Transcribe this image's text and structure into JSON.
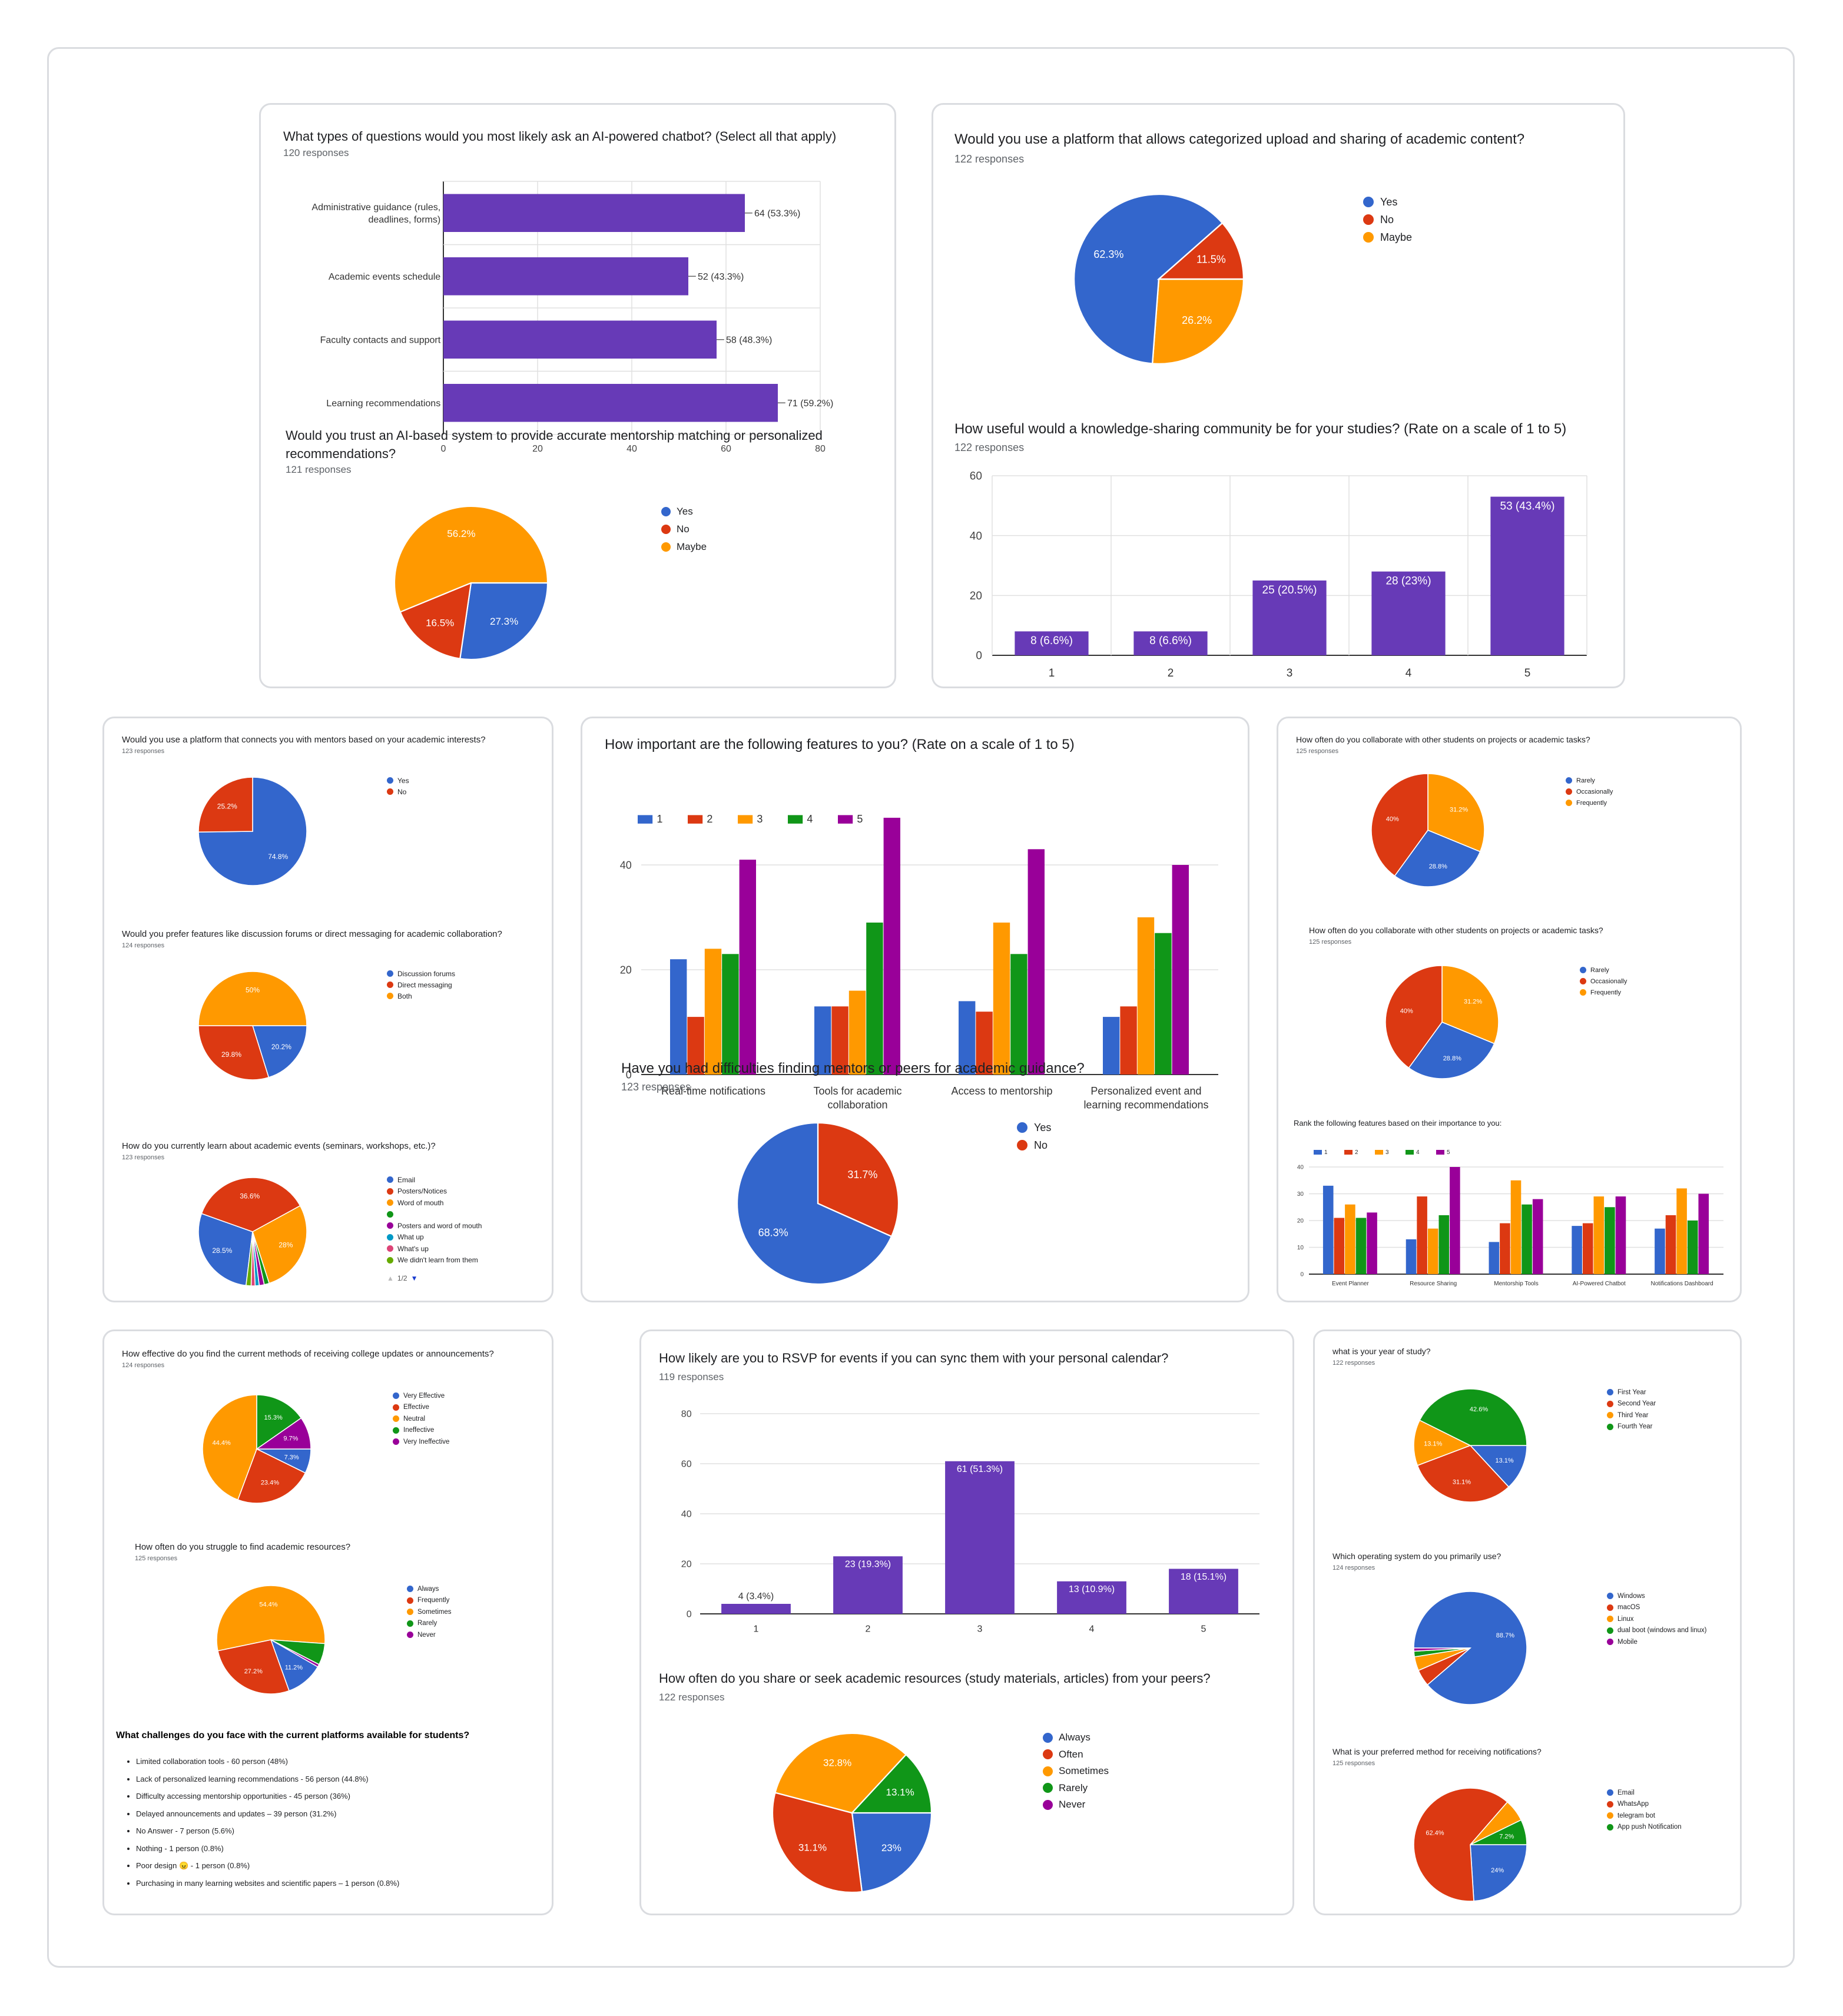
{
  "colors": {
    "blue": "#3366cc",
    "red": "#dc3912",
    "orange": "#ff9900",
    "green": "#109618",
    "purple": "#990099",
    "bar_purple": "#673ab7",
    "cyan": "#0099c6",
    "pink": "#dd4477",
    "olive": "#66aa00",
    "grid": "#e0e0e0",
    "axis": "#333333"
  },
  "pager": {
    "text": "1/2"
  },
  "challenges": {
    "title": "What challenges do you face with the current platforms available for students?",
    "items": [
      "Limited collaboration tools - 60 person (48%)",
      "Lack of personalized learning recommendations - 56 person (44.8%)",
      "Difficulty accessing mentorship opportunities - 45 person (36%)",
      "Delayed announcements and updates – 39 person (31.2%)",
      "No Answer - 7 person (5.6%)",
      "Nothing - 1 person (0.8%)",
      "Poor design 😠 - 1 person (0.8%)",
      "Purchasing in many learning websites and scientific papers – 1 person (0.8%)"
    ]
  },
  "chart_data": [
    {
      "id": "q_types",
      "type": "bar",
      "orientation": "horizontal",
      "title": "What types of questions would you most likely ask an AI-powered chatbot? (Select all that apply)",
      "subtitle": "120 responses",
      "categories": [
        "Administrative guidance (rules, deadlines, forms)",
        "Academic events schedule",
        "Faculty contacts and support",
        "Learning recommendations"
      ],
      "values": [
        64,
        52,
        58,
        71
      ],
      "labels": [
        "64 (53.3%)",
        "52 (43.3%)",
        "58 (48.3%)",
        "71 (59.2%)"
      ],
      "ticks": [
        "0",
        "20",
        "40",
        "60",
        "80"
      ],
      "xlim": [
        0,
        80
      ],
      "grid": true
    },
    {
      "id": "q_upload",
      "type": "pie",
      "title": "Would you use a platform that allows categorized upload and sharing of academic content?",
      "subtitle": "122 responses",
      "legend": [
        "Yes",
        "No",
        "Maybe"
      ],
      "legend_position": "right",
      "values": [
        62.3,
        11.5,
        26.2
      ],
      "slice_labels": [
        "62.3%",
        "11.5%",
        "26.2%"
      ]
    },
    {
      "id": "q_trust",
      "type": "pie",
      "title": "Would you trust an AI-based system to provide accurate mentorship matching or personalized recommendations?",
      "subtitle": "121 responses",
      "legend": [
        "Yes",
        "No",
        "Maybe"
      ],
      "legend_position": "right",
      "values": [
        27.3,
        16.5,
        56.2
      ],
      "slice_labels": [
        "27.3%",
        "16.5%",
        "56.2%"
      ]
    },
    {
      "id": "q_useful",
      "type": "bar",
      "title": "How useful would a knowledge-sharing community be for your studies? (Rate on a scale of 1 to 5)",
      "subtitle": "122 responses",
      "categories": [
        "1",
        "2",
        "3",
        "4",
        "5"
      ],
      "values": [
        8,
        8,
        25,
        28,
        53
      ],
      "labels": [
        "8 (6.6%)",
        "8 (6.6%)",
        "25 (20.5%)",
        "28 (23%)",
        "53 (43.4%)"
      ],
      "ticks": [
        "0",
        "20",
        "40",
        "60"
      ],
      "ylim": [
        0,
        60
      ],
      "grid": true
    },
    {
      "id": "q_mentor_platform",
      "type": "pie",
      "title": "Would you use a platform that connects you with mentors based on your academic interests?",
      "subtitle": "123 responses",
      "legend": [
        "Yes",
        "No"
      ],
      "legend_position": "right",
      "values": [
        74.8,
        25.2
      ],
      "slice_labels": [
        "74.8%",
        "25.2%"
      ]
    },
    {
      "id": "q_forums",
      "type": "pie",
      "title": "Would you prefer features like discussion forums or direct messaging for academic collaboration?",
      "subtitle": "124 responses",
      "legend": [
        "Discussion forums",
        "Direct messaging",
        "Both"
      ],
      "legend_position": "right",
      "values": [
        20.2,
        29.8,
        50
      ],
      "slice_labels": [
        "20.2%",
        "29.8%",
        "50%"
      ]
    },
    {
      "id": "q_learn_events",
      "type": "pie",
      "title": "How do you currently learn about academic events (seminars, workshops, etc.)?",
      "subtitle": "123 responses",
      "legend": [
        "Email",
        "Posters/Notices",
        "Word of mouth",
        "",
        "Posters and word of mouth",
        "What up",
        "What's up",
        "We didn't learn from them"
      ],
      "legend_position": "right",
      "values": [
        28.5,
        36.6,
        28,
        1.5,
        1.5,
        1.2,
        1.2,
        1.5
      ],
      "slice_labels": [
        "28.5%",
        "36.6%",
        "28%",
        "",
        "",
        "",
        "",
        ""
      ]
    },
    {
      "id": "q_features",
      "type": "bar",
      "title": "How important are the following features to you? (Rate on a scale of 1 to 5)",
      "categories": [
        "Real-time notifications",
        "Tools for academic collaboration",
        "Access to mentorship",
        "Personalized event and learning recommendations"
      ],
      "series": [
        {
          "name": "1",
          "values": [
            22,
            13,
            14,
            11
          ]
        },
        {
          "name": "2",
          "values": [
            11,
            13,
            12,
            13
          ]
        },
        {
          "name": "3",
          "values": [
            24,
            16,
            29,
            30
          ]
        },
        {
          "name": "4",
          "values": [
            23,
            29,
            23,
            27
          ]
        },
        {
          "name": "5",
          "values": [
            41,
            49,
            43,
            40
          ]
        }
      ],
      "ticks": [
        "0",
        "20",
        "40"
      ],
      "ylim": [
        0,
        50
      ],
      "legend_position": "top",
      "grid": true
    },
    {
      "id": "q_difficulties",
      "type": "pie",
      "title": "Have you had difficulties finding mentors or peers for academic guidance?",
      "subtitle": "123 responses",
      "legend": [
        "Yes",
        "No"
      ],
      "legend_position": "right",
      "values": [
        68.3,
        31.7
      ],
      "slice_labels": [
        "68.3%",
        "31.7%"
      ]
    },
    {
      "id": "q_collab_a",
      "type": "pie",
      "title": "How often do you collaborate with other students on projects or academic tasks?",
      "subtitle": "125 responses",
      "legend": [
        "Rarely",
        "Occasionally",
        "Frequently"
      ],
      "legend_position": "right",
      "values": [
        28.8,
        40,
        31.2
      ],
      "slice_labels": [
        "28.8%",
        "40%",
        "31.2%"
      ]
    },
    {
      "id": "q_collab_b",
      "type": "pie",
      "title": "How often do you collaborate with other students on projects or academic tasks?",
      "subtitle": "125 responses",
      "legend": [
        "Rarely",
        "Occasionally",
        "Frequently"
      ],
      "legend_position": "right",
      "values": [
        28.8,
        40,
        31.2
      ],
      "slice_labels": [
        "28.8%",
        "40%",
        "31.2%"
      ]
    },
    {
      "id": "q_rank",
      "type": "bar",
      "title": "Rank the following features based on their importance to you:",
      "categories": [
        "Event Planner",
        "Resource Sharing",
        "Mentorship Tools",
        "AI-Powered Chatbot",
        "Notifications Dashboard"
      ],
      "series": [
        {
          "name": "1",
          "values": [
            33,
            13,
            12,
            18,
            17
          ]
        },
        {
          "name": "2",
          "values": [
            21,
            29,
            19,
            19,
            22
          ]
        },
        {
          "name": "3",
          "values": [
            26,
            17,
            35,
            29,
            32
          ]
        },
        {
          "name": "4",
          "values": [
            21,
            22,
            26,
            25,
            20
          ]
        },
        {
          "name": "5",
          "values": [
            23,
            40,
            28,
            29,
            30
          ]
        }
      ],
      "ticks": [
        "0",
        "10",
        "20",
        "30",
        "40"
      ],
      "ylim": [
        0,
        40
      ],
      "legend_position": "top",
      "grid": true
    },
    {
      "id": "q_effective",
      "type": "pie",
      "title": "How effective do you find the current methods of receiving college updates or announcements?",
      "subtitle": "124 responses",
      "legend": [
        "Very Effective",
        "Effective",
        "Neutral",
        "Ineffective",
        "Very Ineffective"
      ],
      "legend_position": "right",
      "values": [
        7.3,
        23.4,
        44.4,
        15.3,
        9.7
      ],
      "slice_labels": [
        "7.3%",
        "23.4%",
        "44.4%",
        "15.3%",
        "9.7%"
      ]
    },
    {
      "id": "q_struggle",
      "type": "pie",
      "title": "How often do you struggle to find academic resources?",
      "subtitle": "125 responses",
      "legend": [
        "Always",
        "Frequently",
        "Sometimes",
        "Rarely",
        "Never"
      ],
      "legend_position": "right",
      "values": [
        11.2,
        27.2,
        54.4,
        6.4,
        0.8
      ],
      "slice_labels": [
        "11.2%",
        "27.2%",
        "54.4%",
        "",
        ""
      ]
    },
    {
      "id": "q_rsvp",
      "type": "bar",
      "title": "How likely are you to RSVP for events if you can sync them with your personal calendar?",
      "subtitle": "119 responses",
      "categories": [
        "1",
        "2",
        "3",
        "4",
        "5"
      ],
      "values": [
        4,
        23,
        61,
        13,
        18
      ],
      "labels": [
        "4 (3.4%)",
        "23 (19.3%)",
        "61 (51.3%)",
        "13 (10.9%)",
        "18 (15.1%)"
      ],
      "ticks": [
        "0",
        "20",
        "40",
        "60",
        "80"
      ],
      "ylim": [
        0,
        80
      ],
      "grid": true
    },
    {
      "id": "q_share",
      "type": "pie",
      "title": "How often do you share or seek academic resources (study materials, articles) from your peers?",
      "subtitle": "122 responses",
      "legend": [
        "Always",
        "Often",
        "Sometimes",
        "Rarely",
        "Never"
      ],
      "legend_position": "right",
      "values": [
        23,
        31.1,
        32.8,
        13.1,
        0
      ],
      "slice_labels": [
        "23%",
        "31.1%",
        "32.8%",
        "13.1%",
        ""
      ]
    },
    {
      "id": "q_year",
      "type": "pie",
      "title": "what is your year of study?",
      "subtitle": "122 responses",
      "legend": [
        "First Year",
        "Second Year",
        "Third Year",
        "Fourth Year"
      ],
      "legend_position": "right",
      "values": [
        13.1,
        31.1,
        13.1,
        42.6
      ],
      "slice_labels": [
        "13.1%",
        "31.1%",
        "13.1%",
        "42.6%"
      ]
    },
    {
      "id": "q_os",
      "type": "pie",
      "title": "Which operating system do you primarily use?",
      "subtitle": "124 responses",
      "legend": [
        "Windows",
        "macOS",
        "Linux",
        "dual boot (windows and linux)",
        "Mobile"
      ],
      "legend_position": "right",
      "values": [
        88.7,
        4.8,
        4.0,
        1.6,
        0.9
      ],
      "slice_labels": [
        "88.7%",
        "",
        "",
        "",
        ""
      ]
    },
    {
      "id": "q_notify",
      "type": "pie",
      "title": "What is your preferred method for receiving notifications?",
      "subtitle": "125 responses",
      "legend": [
        "Email",
        "WhatsApp",
        "telegram bot",
        "App push Notification"
      ],
      "legend_position": "right",
      "values": [
        24,
        62.4,
        6.4,
        7.2
      ],
      "slice_labels": [
        "24%",
        "62.4%",
        "",
        "7.2%"
      ]
    }
  ]
}
